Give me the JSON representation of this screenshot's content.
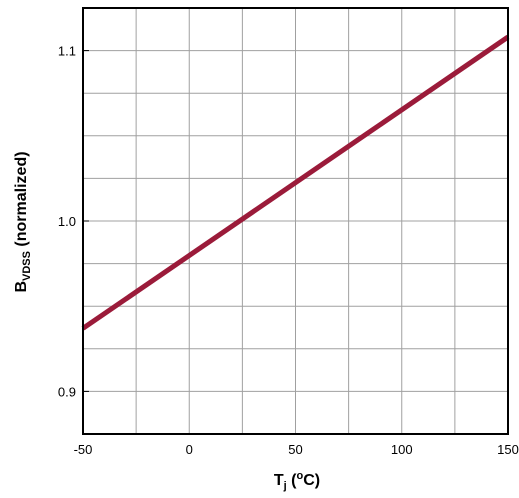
{
  "chart_data": {
    "type": "line",
    "xlabel": {
      "main": "T",
      "sub": "j",
      "paren_open": " (",
      "sup": "o",
      "unit": "C)"
    },
    "ylabel": {
      "main": "B",
      "sub": "VDSS",
      "rest": " (normalized)"
    },
    "xlim": [
      -50,
      150
    ],
    "ylim": [
      0.875,
      1.125
    ],
    "x_ticks": [
      "-50",
      "0",
      "50",
      "100",
      "150"
    ],
    "x_tick_values": [
      -50,
      0,
      50,
      100,
      150
    ],
    "y_ticks": [
      "0.9",
      "1.0",
      "1.1"
    ],
    "y_tick_values": [
      0.9,
      1.0,
      1.1
    ],
    "x_grid_step": 25,
    "y_grid_step": 0.025,
    "grid": true,
    "series": [
      {
        "color": "#9b1b3a",
        "x": [
          -50,
          150
        ],
        "y": [
          0.937,
          1.108
        ]
      }
    ]
  }
}
